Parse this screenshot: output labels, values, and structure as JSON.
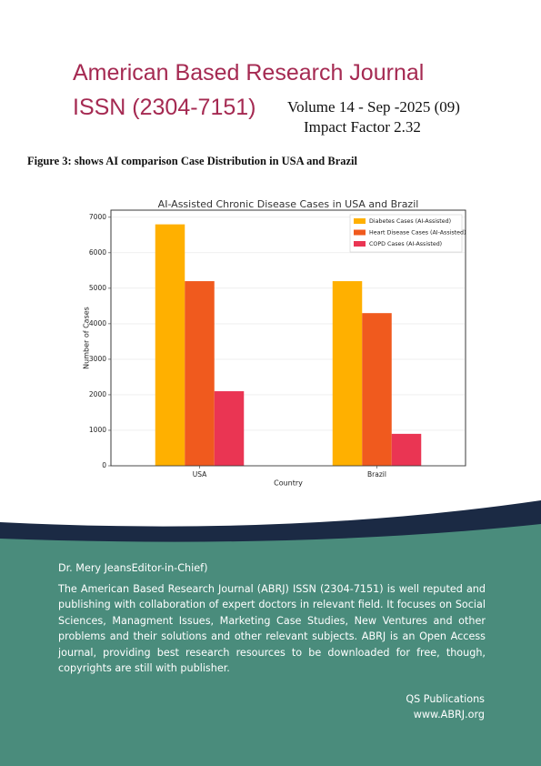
{
  "header": {
    "title": "American Based Research Journal",
    "issn": "ISSN (2304-7151)",
    "volume": "Volume 14 - Sep -2025 (09)",
    "impact": "Impact Factor 2.32"
  },
  "figure_caption": "Figure 3: shows AI comparison Case Distribution in USA and Brazil",
  "chart_data": {
    "type": "bar",
    "title": "AI-Assisted Chronic Disease Cases in USA and Brazil",
    "x_label": "Country",
    "y_label": "Number of Cases",
    "categories": [
      "USA",
      "Brazil"
    ],
    "series": [
      {
        "name": "Diabetes Cases (AI-Assisted)",
        "color": "#ffb000",
        "values": [
          6800,
          5200
        ]
      },
      {
        "name": "Heart Disease Cases (AI-Assisted)",
        "color": "#f05a1e",
        "values": [
          5200,
          4300
        ]
      },
      {
        "name": "COPD Cases (AI-Assisted)",
        "color": "#ea3553",
        "values": [
          2100,
          900
        ]
      }
    ],
    "ylim": [
      0,
      7200
    ],
    "yticks": [
      0,
      1000,
      2000,
      3000,
      4000,
      5000,
      6000,
      7000
    ],
    "grid": true,
    "legend": "upper right"
  },
  "footer": {
    "editor": "Dr. Mery JeansEditor-in-Chief)",
    "description": "The American Based Research Journal (ABRJ) ISSN (2304-7151) is well reputed and publishing with collaboration of expert doctors in relevant field. It focuses on Social Sciences, Managment Issues, Marketing Case Studies, New Ventures and other problems and their solutions and other relevant subjects. ABRJ is an Open Access journal, providing best research resources to be downloaded for free, though, copyrights are still with publisher.",
    "publisher": "QS Publications",
    "website": "www.ABRJ.org"
  }
}
